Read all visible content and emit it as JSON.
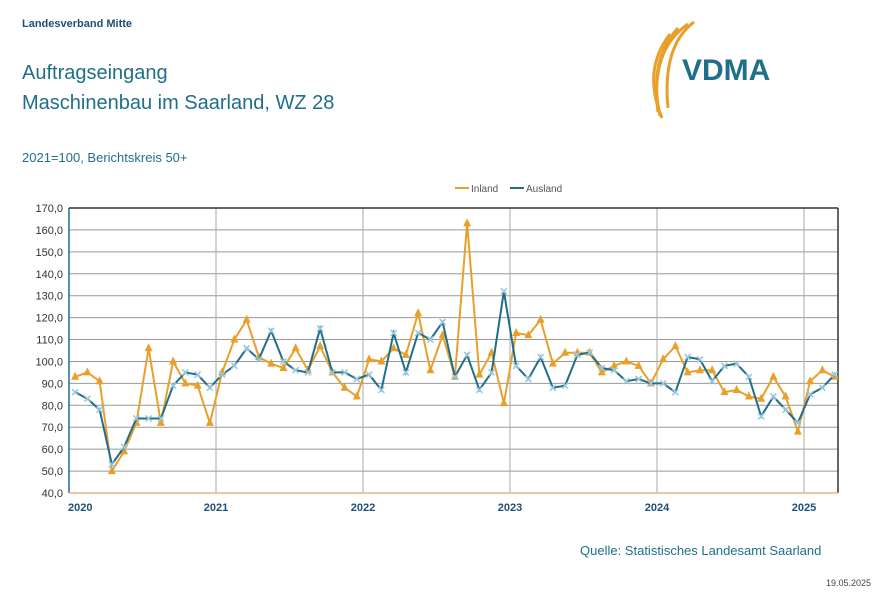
{
  "header": {
    "org": "Landesverband Mitte",
    "title_line1": "Auftragseingang",
    "title_line2": "Maschinenbau im Saarland, WZ 28",
    "subtitle": "2021=100, Berichtskreis 50+",
    "logo_text": "VDMA"
  },
  "footer": {
    "source": "Quelle: Statistisches Landesamt Saarland",
    "date": "19.05.2025"
  },
  "colors": {
    "inland": "#e8a02a",
    "ausland": "#1f6f8b",
    "ausland_marker": "#9cc8dc"
  },
  "chart_data": {
    "type": "line",
    "title": "Auftragseingang Maschinenbau im Saarland, WZ 28",
    "xlabel": "",
    "ylabel": "",
    "ylim": [
      40,
      170
    ],
    "yticks": [
      "40,0",
      "50,0",
      "60,0",
      "70,0",
      "80,0",
      "90,0",
      "100,0",
      "110,0",
      "120,0",
      "130,0",
      "140,0",
      "150,0",
      "160,0",
      "170,0"
    ],
    "xticks": [
      "2020",
      "2021",
      "2022",
      "2023",
      "2024",
      "2025"
    ],
    "x_start": "2020-01",
    "legend_position": "top",
    "series": [
      {
        "name": "Inland",
        "values": [
          93,
          95,
          91,
          50,
          59,
          72,
          106,
          72,
          100,
          90,
          89,
          72,
          95,
          110,
          119,
          102,
          99,
          97,
          106,
          96,
          107,
          95,
          88,
          84,
          101,
          100,
          106,
          103,
          122,
          96,
          112,
          93,
          163,
          94,
          104,
          81,
          113,
          112,
          119,
          99,
          104,
          104,
          104,
          95,
          98,
          100,
          98,
          90,
          101,
          107,
          95,
          96,
          96,
          86,
          87,
          84,
          83,
          93,
          84,
          68,
          91,
          96,
          93
        ]
      },
      {
        "name": "Ausland",
        "values": [
          86,
          83,
          78,
          53,
          61,
          74,
          74,
          74,
          89,
          95,
          94,
          88,
          94,
          98,
          106,
          101,
          114,
          100,
          96,
          95,
          115,
          95,
          95,
          92,
          94,
          87,
          113,
          95,
          113,
          110,
          118,
          93,
          103,
          87,
          95,
          132,
          98,
          92,
          102,
          88,
          89,
          103,
          104,
          97,
          96,
          91,
          92,
          90,
          90,
          86,
          102,
          101,
          91,
          98,
          99,
          93,
          75,
          84,
          78,
          72,
          85,
          88,
          94
        ]
      }
    ]
  }
}
